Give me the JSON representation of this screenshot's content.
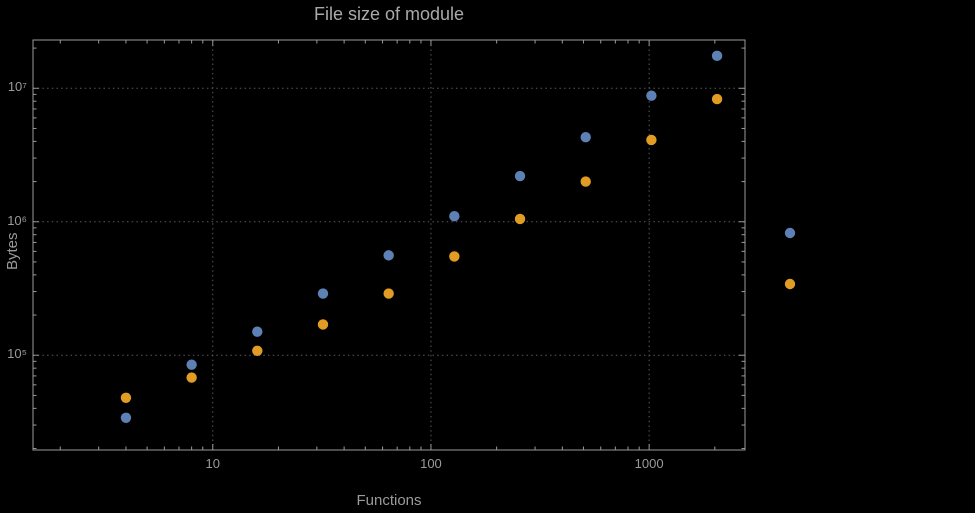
{
  "chart_data": {
    "type": "scatter",
    "title": "File size of module",
    "xlabel": "Functions",
    "ylabel": "Bytes",
    "xscale": "log",
    "yscale": "log",
    "xlim": [
      1.5,
      2750
    ],
    "ylim": [
      19500,
      23000000
    ],
    "x_ticks": [
      10,
      100,
      1000
    ],
    "x_tick_labels": [
      "10",
      "100",
      "1000"
    ],
    "y_ticks": [
      100000,
      1000000,
      10000000
    ],
    "y_tick_labels": [
      "10⁵",
      "10⁶",
      "10⁷"
    ],
    "grid": true,
    "grid_style": "dotted",
    "legend_position": "right",
    "colors": {
      "background": "#000000",
      "frame": "#9a9a9a",
      "grid": "#5a5a5a",
      "text": "#9a9a9a",
      "series1": "#5e81b5",
      "series2": "#e19c24"
    },
    "series": [
      {
        "name": "series-1-blue",
        "color": "#5e81b5",
        "points": [
          [
            4,
            34000
          ],
          [
            8,
            85000
          ],
          [
            16,
            150000
          ],
          [
            32,
            290000
          ],
          [
            64,
            560000
          ],
          [
            128,
            1100000
          ],
          [
            256,
            2200000
          ],
          [
            512,
            4300000
          ],
          [
            1024,
            8800000
          ],
          [
            2048,
            17500000
          ]
        ]
      },
      {
        "name": "series-2-orange",
        "color": "#e19c24",
        "points": [
          [
            4,
            48000
          ],
          [
            8,
            68000
          ],
          [
            16,
            108000
          ],
          [
            32,
            170000
          ],
          [
            64,
            290000
          ],
          [
            128,
            550000
          ],
          [
            256,
            1050000
          ],
          [
            512,
            2000000
          ],
          [
            1024,
            4100000
          ],
          [
            2048,
            8300000
          ]
        ]
      }
    ],
    "legend_markers": [
      {
        "name": "legend-marker-blue",
        "color": "#5e81b5"
      },
      {
        "name": "legend-marker-orange",
        "color": "#e19c24"
      }
    ]
  }
}
